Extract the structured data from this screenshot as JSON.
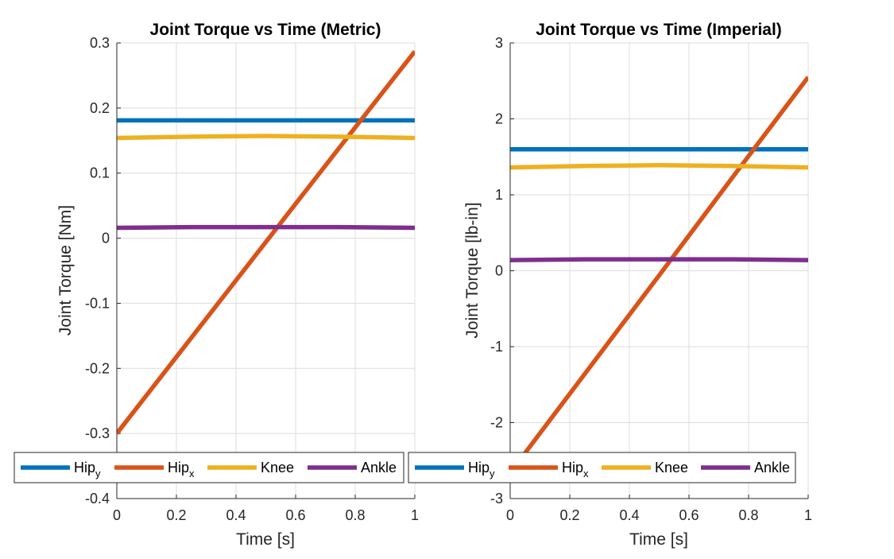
{
  "chart_data": [
    {
      "type": "line",
      "title": "Joint Torque vs Time (Metric)",
      "xlabel": "Time [s]",
      "ylabel": "Joint Torque [Nm]",
      "xlim": [
        0,
        1
      ],
      "ylim": [
        -0.4,
        0.3
      ],
      "xticks": [
        "0",
        "0.2",
        "0.4",
        "0.6",
        "0.8",
        "1"
      ],
      "yticks": [
        "0.3",
        "0.2",
        "0.1",
        "0",
        "-0.1",
        "-0.2",
        "-0.3",
        "-0.4"
      ],
      "grid": true,
      "legend": {
        "placement": "bottom",
        "orientation": "horizontal"
      },
      "x": [
        0,
        0.25,
        0.5,
        0.75,
        1
      ],
      "series": [
        {
          "name": "Hip",
          "name_sub": "y",
          "color": "#0072BD",
          "values": [
            0.181,
            0.181,
            0.181,
            0.181,
            0.181
          ]
        },
        {
          "name": "Hip",
          "name_sub": "x",
          "color": "#D95319",
          "values": [
            -0.3,
            -0.153,
            -0.006,
            0.141,
            0.287
          ]
        },
        {
          "name": "Knee",
          "name_sub": "",
          "color": "#EDB120",
          "values": [
            0.154,
            0.156,
            0.157,
            0.156,
            0.154
          ]
        },
        {
          "name": "Ankle",
          "name_sub": "",
          "color": "#7E2F8E",
          "values": [
            0.016,
            0.017,
            0.017,
            0.017,
            0.016
          ]
        }
      ]
    },
    {
      "type": "line",
      "title": "Joint Torque vs Time (Imperial)",
      "xlabel": "Time [s]",
      "ylabel": "Joint Torque [lb-in]",
      "xlim": [
        0,
        1
      ],
      "ylim": [
        -3,
        3
      ],
      "xticks": [
        "0",
        "0.2",
        "0.4",
        "0.6",
        "0.8",
        "1"
      ],
      "yticks": [
        "3",
        "2",
        "1",
        "0",
        "-1",
        "-2",
        "-3"
      ],
      "grid": true,
      "legend": {
        "placement": "bottom",
        "orientation": "horizontal"
      },
      "x": [
        0,
        0.25,
        0.5,
        0.75,
        1
      ],
      "series": [
        {
          "name": "Hip",
          "name_sub": "y",
          "color": "#0072BD",
          "values": [
            1.6,
            1.6,
            1.6,
            1.6,
            1.6
          ]
        },
        {
          "name": "Hip",
          "name_sub": "x",
          "color": "#D95319",
          "values": [
            -2.66,
            -1.36,
            -0.06,
            1.25,
            2.55
          ]
        },
        {
          "name": "Knee",
          "name_sub": "",
          "color": "#EDB120",
          "values": [
            1.36,
            1.38,
            1.39,
            1.38,
            1.36
          ]
        },
        {
          "name": "Ankle",
          "name_sub": "",
          "color": "#7E2F8E",
          "values": [
            0.14,
            0.15,
            0.15,
            0.15,
            0.14
          ]
        }
      ]
    }
  ]
}
